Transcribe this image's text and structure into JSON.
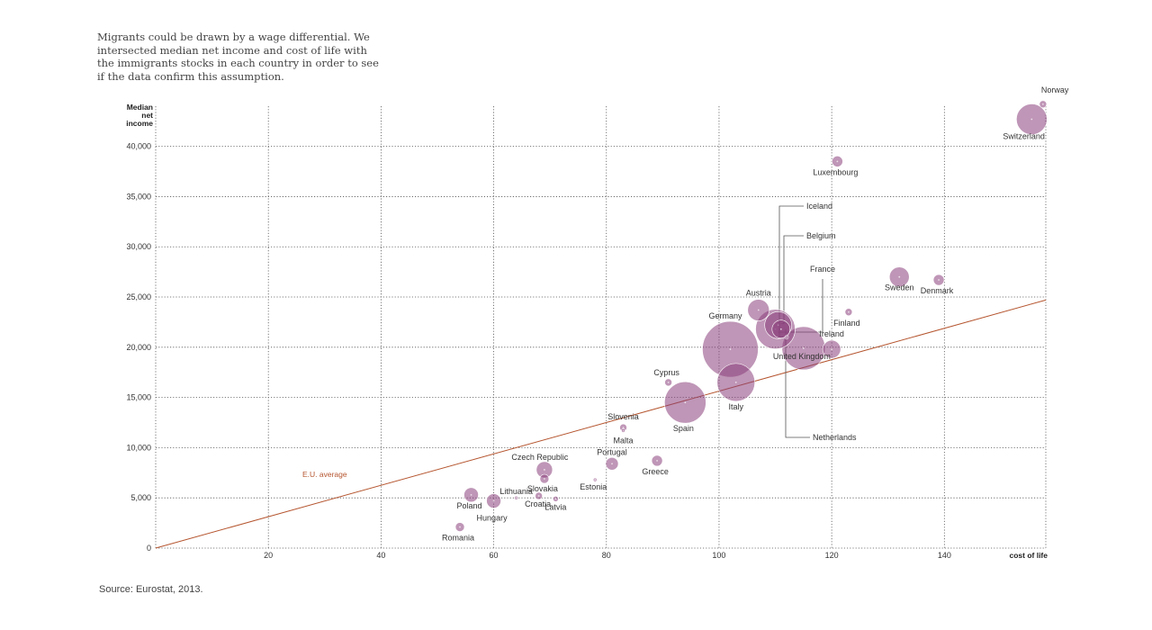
{
  "intro_text": "Migrants could be drawn by a wage differential. We intersected median net income and cost of life  with the immigrants stocks in each country in order to see if the data confirm this assumption.",
  "source_text": "Source: Eurostat, 2013.",
  "chart_data": {
    "type": "scatter",
    "title": "",
    "xlabel": "cost of life",
    "ylabel_lines": [
      "Median",
      "net",
      "income"
    ],
    "xlim": [
      0,
      158
    ],
    "ylim": [
      0,
      44000
    ],
    "x_ticks": [
      20,
      40,
      60,
      80,
      100,
      120,
      140
    ],
    "y_ticks": [
      0,
      5000,
      10000,
      15000,
      20000,
      25000,
      30000,
      35000,
      40000
    ],
    "y_tick_labels": [
      "0",
      "5,000",
      "10,000",
      "15,000",
      "20,000",
      "25,000",
      "30,000",
      "35,000",
      "40,000"
    ],
    "grid": true,
    "bubble_color": "#8a3f7c",
    "line_color": "#b5552f",
    "reference_line": {
      "label": "E.U. average",
      "from": [
        0,
        0
      ],
      "to": [
        158,
        24700
      ]
    },
    "points": [
      {
        "country": "Norway",
        "x": 157.5,
        "y": 44200,
        "size": 4
      },
      {
        "country": "Switzerland",
        "x": 155.5,
        "y": 42700,
        "size": 17
      },
      {
        "country": "Luxembourg",
        "x": 121,
        "y": 38500,
        "size": 6
      },
      {
        "country": "Iceland",
        "x": 112,
        "y": 21000,
        "size": 2
      },
      {
        "country": "Belgium",
        "x": 111,
        "y": 21800,
        "size": 10
      },
      {
        "country": "France",
        "x": 110.5,
        "y": 22200,
        "size": 15
      },
      {
        "country": "Sweden",
        "x": 132,
        "y": 27000,
        "size": 11
      },
      {
        "country": "Denmark",
        "x": 139,
        "y": 26700,
        "size": 6
      },
      {
        "country": "Austria",
        "x": 107,
        "y": 23700,
        "size": 12
      },
      {
        "country": "Finland",
        "x": 123,
        "y": 23500,
        "size": 4
      },
      {
        "country": "Germany",
        "x": 102,
        "y": 19800,
        "size": 31
      },
      {
        "country": "Ireland",
        "x": 120,
        "y": 19800,
        "size": 10
      },
      {
        "country": "United Kingdom",
        "x": 115,
        "y": 19900,
        "size": 24
      },
      {
        "country": "Netherlands",
        "x": 110,
        "y": 21800,
        "size": 22
      },
      {
        "country": "Cyprus",
        "x": 91,
        "y": 16500,
        "size": 4
      },
      {
        "country": "Italy",
        "x": 103,
        "y": 16500,
        "size": 21
      },
      {
        "country": "Spain",
        "x": 94,
        "y": 14500,
        "size": 23
      },
      {
        "country": "Slovenia",
        "x": 83,
        "y": 12000,
        "size": 4
      },
      {
        "country": "Malta",
        "x": 83,
        "y": 11700,
        "size": 2
      },
      {
        "country": "Portugal",
        "x": 81,
        "y": 8400,
        "size": 7
      },
      {
        "country": "Greece",
        "x": 89,
        "y": 8700,
        "size": 6
      },
      {
        "country": "Estonia",
        "x": 78,
        "y": 6800,
        "size": 2
      },
      {
        "country": "Czech Republic",
        "x": 69,
        "y": 7800,
        "size": 9
      },
      {
        "country": "Slovakia",
        "x": 69,
        "y": 6900,
        "size": 5
      },
      {
        "country": "Lithuania",
        "x": 64,
        "y": 5000,
        "size": 2
      },
      {
        "country": "Croatia",
        "x": 68,
        "y": 5200,
        "size": 4
      },
      {
        "country": "Latvia",
        "x": 71,
        "y": 4900,
        "size": 3
      },
      {
        "country": "Poland",
        "x": 56,
        "y": 5300,
        "size": 8
      },
      {
        "country": "Hungary",
        "x": 60,
        "y": 4700,
        "size": 8
      },
      {
        "country": "Romania",
        "x": 54,
        "y": 2100,
        "size": 5
      }
    ]
  }
}
